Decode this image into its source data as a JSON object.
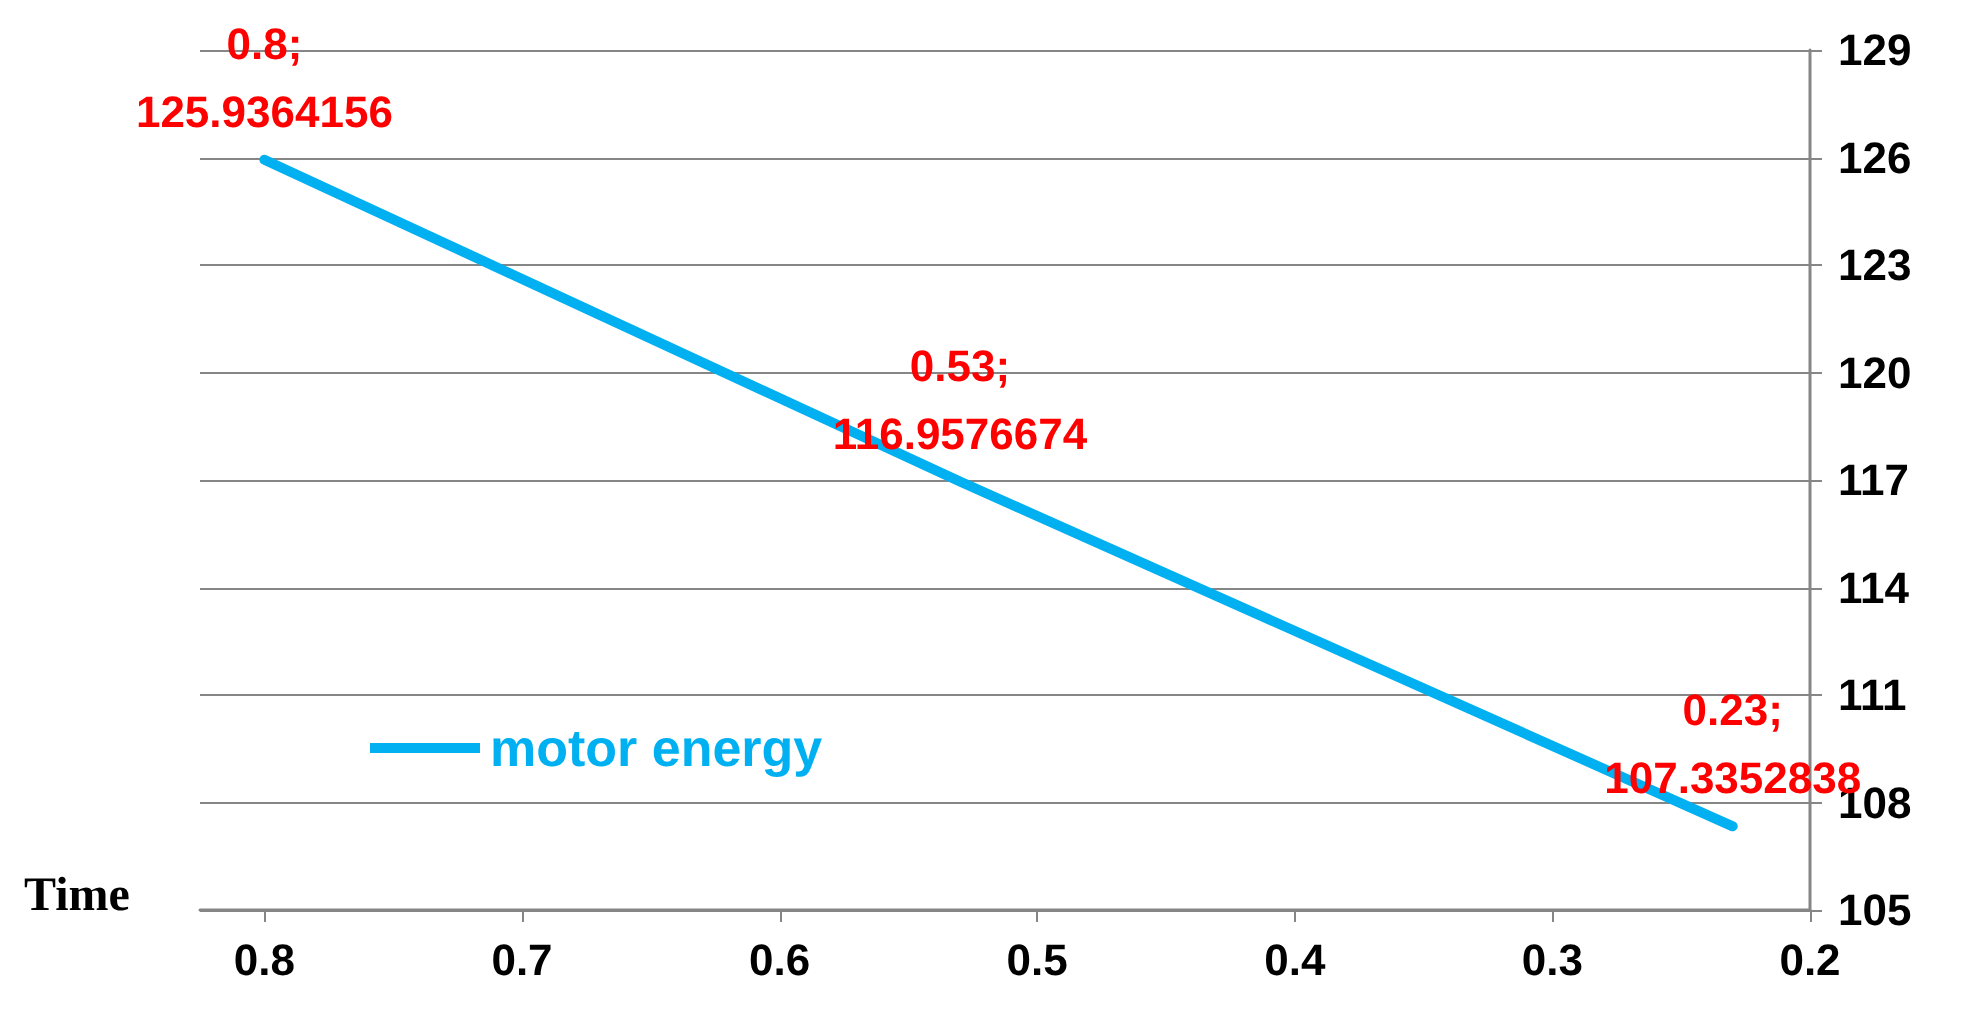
{
  "chart_data": {
    "type": "line",
    "xlabel": "Time",
    "x": [
      0.8,
      0.53,
      0.23
    ],
    "series": [
      {
        "name": "motor energy",
        "color": "#00b0f0",
        "values": [
          125.9364156,
          116.9576674,
          107.3352838
        ],
        "value_labels": [
          "0.8;\n125.9364156",
          "0.53;\n116.9576674",
          "0.23;\n107.3352838"
        ]
      }
    ],
    "xlim": [
      0.825,
      0.2
    ],
    "xticks": [
      0.8,
      0.7,
      0.6,
      0.5,
      0.4,
      0.3,
      0.2
    ],
    "ylim": [
      105,
      129
    ],
    "yticks": [
      105,
      108,
      111,
      114,
      117,
      120,
      123,
      126,
      129
    ],
    "grid": "y",
    "legend": "bottom left",
    "marker": "none",
    "line_style": "solid"
  }
}
